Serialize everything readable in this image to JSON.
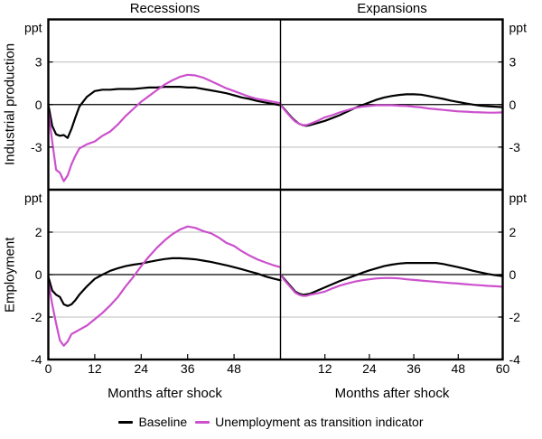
{
  "header": {
    "left_title": "Recessions",
    "right_title": "Expansions"
  },
  "rows": [
    {
      "label": "Industrial production"
    },
    {
      "label": "Employment"
    }
  ],
  "legend": [
    {
      "label": "Baseline",
      "color": "#000000"
    },
    {
      "label": "Unemployment as transition indicator",
      "color": "#CC50CC"
    }
  ],
  "colors": {
    "baseline": "#000000",
    "indicator": "#CC50CC",
    "grid": "#C9C9C9",
    "axis": "#000000"
  },
  "chart_data": [
    {
      "type": "line",
      "title": "Recessions",
      "row_label": "Industrial production",
      "unit": "ppt",
      "xlabel": "Months after shock",
      "xlim": [
        0,
        60
      ],
      "ylim": [
        -6,
        6
      ],
      "gridlines": [
        3,
        -3
      ],
      "ylabels_side": "left",
      "ytick_labels": [
        {
          "v": 6,
          "t": "ppt"
        },
        {
          "v": 3,
          "t": "3"
        },
        {
          "v": 0,
          "t": "0"
        },
        {
          "v": -3,
          "t": "-3"
        }
      ],
      "xticks": [
        0,
        12,
        24,
        36,
        48,
        60
      ],
      "xtick_labels": [
        "",
        "",
        "",
        "",
        "",
        ""
      ],
      "series": [
        {
          "name": "Baseline",
          "color": "#000000",
          "x": [
            0,
            1,
            2,
            3,
            4,
            5,
            6,
            7,
            8,
            10,
            12,
            14,
            16,
            18,
            20,
            22,
            24,
            26,
            28,
            30,
            32,
            34,
            36,
            38,
            40,
            42,
            44,
            46,
            48,
            50,
            52,
            54,
            56,
            58,
            60
          ],
          "y": [
            0,
            -1.5,
            -2.1,
            -2.2,
            -2.15,
            -2.35,
            -1.7,
            -0.9,
            -0.15,
            0.55,
            0.95,
            1.05,
            1.05,
            1.1,
            1.1,
            1.1,
            1.15,
            1.2,
            1.2,
            1.25,
            1.25,
            1.25,
            1.2,
            1.2,
            1.1,
            1.0,
            0.9,
            0.8,
            0.65,
            0.5,
            0.4,
            0.25,
            0.15,
            0.05,
            -0.05
          ]
        },
        {
          "name": "Unemployment as transition indicator",
          "color": "#CC50CC",
          "x": [
            0,
            1,
            2,
            3,
            4,
            5,
            6,
            7,
            8,
            10,
            12,
            14,
            16,
            18,
            20,
            22,
            24,
            26,
            28,
            30,
            32,
            34,
            36,
            38,
            40,
            42,
            44,
            46,
            48,
            50,
            52,
            54,
            56,
            58,
            60
          ],
          "y": [
            -0.4,
            -2.6,
            -4.6,
            -4.8,
            -5.4,
            -5.0,
            -4.2,
            -3.6,
            -3.1,
            -2.8,
            -2.6,
            -2.2,
            -1.9,
            -1.4,
            -0.8,
            -0.3,
            0.2,
            0.6,
            1.0,
            1.4,
            1.7,
            1.95,
            2.1,
            2.05,
            1.9,
            1.65,
            1.4,
            1.15,
            0.95,
            0.75,
            0.55,
            0.4,
            0.3,
            0.2,
            0.1
          ]
        }
      ]
    },
    {
      "type": "line",
      "title": "Expansions",
      "row_label": "Industrial production",
      "unit": "ppt",
      "xlabel": "Months after shock",
      "xlim": [
        0,
        60
      ],
      "ylim": [
        -6,
        6
      ],
      "gridlines": [
        3,
        -3
      ],
      "ylabels_side": "right",
      "ytick_labels": [
        {
          "v": 6,
          "t": "ppt"
        },
        {
          "v": 3,
          "t": "3"
        },
        {
          "v": 0,
          "t": "0"
        },
        {
          "v": -3,
          "t": "-3"
        }
      ],
      "xticks": [
        0,
        12,
        24,
        36,
        48,
        60
      ],
      "xtick_labels": [
        "",
        "",
        "",
        "",
        "",
        ""
      ],
      "series": [
        {
          "name": "Baseline",
          "color": "#000000",
          "x": [
            0,
            1,
            2,
            3,
            4,
            5,
            6,
            7,
            8,
            10,
            12,
            14,
            16,
            18,
            20,
            22,
            24,
            26,
            28,
            30,
            32,
            34,
            36,
            38,
            40,
            42,
            44,
            46,
            48,
            50,
            52,
            54,
            56,
            58,
            60
          ],
          "y": [
            0,
            -0.3,
            -0.6,
            -0.9,
            -1.15,
            -1.35,
            -1.45,
            -1.5,
            -1.45,
            -1.3,
            -1.15,
            -0.95,
            -0.75,
            -0.5,
            -0.25,
            -0.05,
            0.15,
            0.35,
            0.5,
            0.6,
            0.68,
            0.72,
            0.72,
            0.7,
            0.6,
            0.5,
            0.4,
            0.28,
            0.18,
            0.08,
            0.0,
            -0.08,
            -0.12,
            -0.15,
            -0.18
          ]
        },
        {
          "name": "Unemployment as transition indicator",
          "color": "#CC50CC",
          "x": [
            0,
            1,
            2,
            3,
            4,
            5,
            6,
            7,
            8,
            10,
            12,
            14,
            16,
            18,
            20,
            22,
            24,
            26,
            28,
            30,
            32,
            34,
            36,
            38,
            40,
            42,
            44,
            46,
            48,
            50,
            52,
            54,
            56,
            58,
            60
          ],
          "y": [
            0,
            -0.35,
            -0.65,
            -0.95,
            -1.2,
            -1.35,
            -1.45,
            -1.45,
            -1.35,
            -1.15,
            -0.9,
            -0.75,
            -0.55,
            -0.4,
            -0.25,
            -0.15,
            -0.1,
            -0.05,
            -0.05,
            -0.05,
            -0.08,
            -0.1,
            -0.15,
            -0.2,
            -0.28,
            -0.33,
            -0.38,
            -0.43,
            -0.48,
            -0.5,
            -0.53,
            -0.55,
            -0.57,
            -0.57,
            -0.55
          ]
        }
      ]
    },
    {
      "type": "line",
      "title": "Recessions",
      "row_label": "Employment",
      "unit": "ppt",
      "xlabel": "Months after shock",
      "xlim": [
        0,
        60
      ],
      "ylim": [
        -4,
        4
      ],
      "gridlines": [
        2,
        -2
      ],
      "ylabels_side": "left",
      "ytick_labels": [
        {
          "v": 4,
          "t": "ppt"
        },
        {
          "v": 2,
          "t": "2"
        },
        {
          "v": 0,
          "t": "0"
        },
        {
          "v": -2,
          "t": "-2"
        },
        {
          "v": -4,
          "t": "-4"
        }
      ],
      "xticks": [
        0,
        12,
        24,
        36,
        48,
        60
      ],
      "xtick_labels": [
        "0",
        "12",
        "24",
        "36",
        "48",
        ""
      ],
      "series": [
        {
          "name": "Baseline",
          "color": "#000000",
          "x": [
            0,
            1,
            2,
            3,
            4,
            5,
            6,
            7,
            8,
            10,
            12,
            14,
            16,
            18,
            20,
            22,
            24,
            26,
            28,
            30,
            32,
            34,
            36,
            38,
            40,
            42,
            44,
            46,
            48,
            50,
            52,
            54,
            56,
            58,
            60
          ],
          "y": [
            -0.1,
            -0.75,
            -0.95,
            -1.05,
            -1.4,
            -1.48,
            -1.4,
            -1.2,
            -0.95,
            -0.55,
            -0.2,
            0.0,
            0.18,
            0.3,
            0.4,
            0.47,
            0.52,
            0.6,
            0.67,
            0.73,
            0.77,
            0.77,
            0.75,
            0.72,
            0.66,
            0.6,
            0.52,
            0.44,
            0.35,
            0.25,
            0.15,
            0.05,
            -0.08,
            -0.18,
            -0.27
          ]
        },
        {
          "name": "Unemployment as transition indicator",
          "color": "#CC50CC",
          "x": [
            0,
            1,
            2,
            3,
            4,
            5,
            6,
            7,
            8,
            10,
            12,
            14,
            16,
            18,
            20,
            22,
            24,
            26,
            28,
            30,
            32,
            34,
            36,
            38,
            40,
            42,
            44,
            46,
            48,
            50,
            52,
            54,
            56,
            58,
            60
          ],
          "y": [
            -0.35,
            -1.4,
            -2.3,
            -3.1,
            -3.35,
            -3.15,
            -2.8,
            -2.7,
            -2.6,
            -2.4,
            -2.1,
            -1.8,
            -1.45,
            -1.05,
            -0.55,
            -0.1,
            0.4,
            0.85,
            1.25,
            1.6,
            1.9,
            2.12,
            2.27,
            2.2,
            2.05,
            1.95,
            1.75,
            1.5,
            1.35,
            1.1,
            0.9,
            0.72,
            0.58,
            0.45,
            0.35
          ]
        }
      ]
    },
    {
      "type": "line",
      "title": "Expansions",
      "row_label": "Employment",
      "unit": "ppt",
      "xlabel": "Months after shock",
      "xlim": [
        0,
        60
      ],
      "ylim": [
        -4,
        4
      ],
      "gridlines": [
        2,
        -2
      ],
      "ylabels_side": "right",
      "ytick_labels": [
        {
          "v": 4,
          "t": "ppt"
        },
        {
          "v": 2,
          "t": "2"
        },
        {
          "v": 0,
          "t": "0"
        },
        {
          "v": -2,
          "t": "-2"
        },
        {
          "v": -4,
          "t": "-4"
        }
      ],
      "xticks": [
        0,
        12,
        24,
        36,
        48,
        60
      ],
      "xtick_labels": [
        "",
        "12",
        "24",
        "36",
        "48",
        "60"
      ],
      "series": [
        {
          "name": "Baseline",
          "color": "#000000",
          "x": [
            0,
            1,
            2,
            3,
            4,
            5,
            6,
            7,
            8,
            10,
            12,
            14,
            16,
            18,
            20,
            22,
            24,
            26,
            28,
            30,
            32,
            34,
            36,
            38,
            40,
            42,
            44,
            46,
            48,
            50,
            52,
            54,
            56,
            58,
            60
          ],
          "y": [
            0,
            -0.2,
            -0.4,
            -0.6,
            -0.8,
            -0.9,
            -0.95,
            -0.93,
            -0.9,
            -0.75,
            -0.6,
            -0.45,
            -0.3,
            -0.18,
            -0.05,
            0.08,
            0.2,
            0.3,
            0.4,
            0.47,
            0.52,
            0.55,
            0.55,
            0.55,
            0.55,
            0.55,
            0.5,
            0.42,
            0.35,
            0.27,
            0.18,
            0.1,
            0.03,
            -0.03,
            -0.07
          ]
        },
        {
          "name": "Unemployment as transition indicator",
          "color": "#CC50CC",
          "x": [
            0,
            1,
            2,
            3,
            4,
            5,
            6,
            7,
            8,
            10,
            12,
            14,
            16,
            18,
            20,
            22,
            24,
            26,
            28,
            30,
            32,
            34,
            36,
            38,
            40,
            42,
            44,
            46,
            48,
            50,
            52,
            54,
            56,
            58,
            60
          ],
          "y": [
            0,
            -0.25,
            -0.45,
            -0.65,
            -0.85,
            -0.95,
            -1.0,
            -1.0,
            -0.95,
            -0.88,
            -0.8,
            -0.65,
            -0.52,
            -0.42,
            -0.33,
            -0.27,
            -0.22,
            -0.18,
            -0.16,
            -0.16,
            -0.18,
            -0.22,
            -0.25,
            -0.28,
            -0.31,
            -0.34,
            -0.37,
            -0.4,
            -0.42,
            -0.45,
            -0.48,
            -0.5,
            -0.53,
            -0.55,
            -0.57
          ]
        }
      ]
    }
  ]
}
